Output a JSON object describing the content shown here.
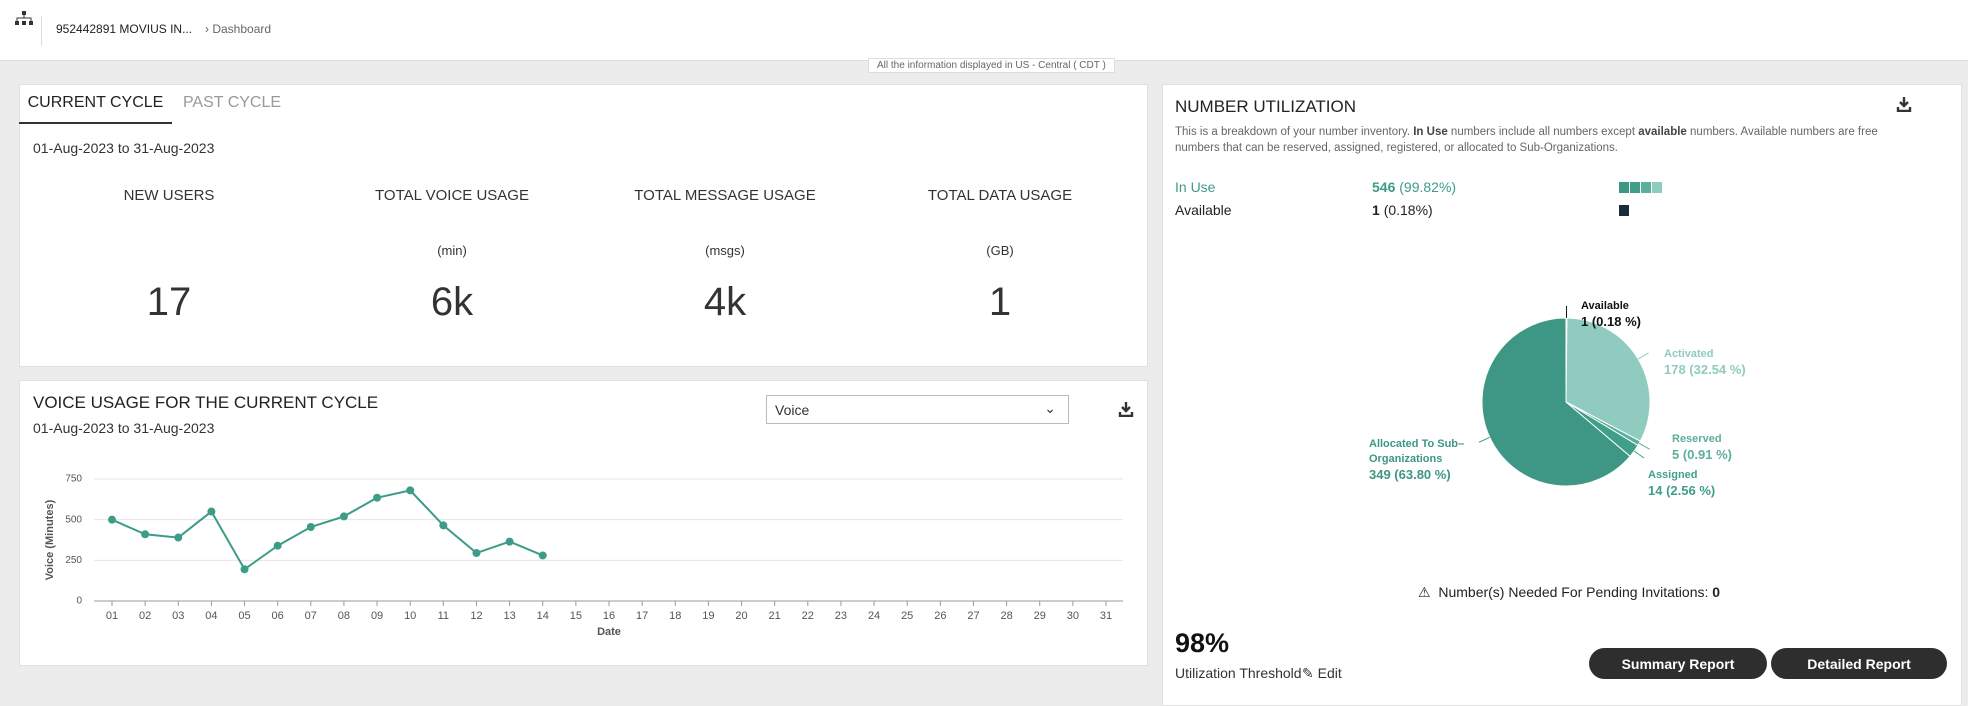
{
  "header": {
    "account": "952442891 MOVIUS IN...",
    "breadcrumb": "Dashboard",
    "timezone": "All the information displayed in US - Central ( CDT )"
  },
  "cycle_panel": {
    "tabs": [
      "CURRENT CYCLE",
      "PAST CYCLE"
    ],
    "date_range": "01-Aug-2023 to 31-Aug-2023",
    "stats": [
      {
        "label": "NEW USERS",
        "unit": null,
        "value": "17"
      },
      {
        "label": "TOTAL VOICE USAGE",
        "unit": "(min)",
        "value": "6k"
      },
      {
        "label": "TOTAL MESSAGE USAGE",
        "unit": "(msgs)",
        "value": "4k"
      },
      {
        "label": "TOTAL DATA USAGE",
        "unit": "(GB)",
        "value": "1"
      }
    ]
  },
  "voice_panel": {
    "title": "VOICE USAGE FOR THE CURRENT CYCLE",
    "date_range": "01-Aug-2023 to 31-Aug-2023",
    "dropdown": "Voice",
    "chart": {
      "type": "line",
      "x_label": "Date",
      "y_label": "Voice (Minutes)",
      "color": "#3d9c87",
      "grid": true,
      "categories": [
        "01",
        "02",
        "03",
        "04",
        "05",
        "06",
        "07",
        "08",
        "09",
        "10",
        "11",
        "12",
        "13",
        "14",
        "15",
        "16",
        "17",
        "18",
        "19",
        "20",
        "21",
        "22",
        "23",
        "24",
        "25",
        "26",
        "27",
        "28",
        "29",
        "30",
        "31"
      ],
      "values": [
        500,
        410,
        390,
        550,
        195,
        340,
        455,
        520,
        635,
        680,
        465,
        295,
        365,
        280,
        null,
        null,
        null,
        null,
        null,
        null,
        null,
        null,
        null,
        null,
        null,
        null,
        null,
        null,
        null,
        null,
        null
      ],
      "ylim": [
        0,
        750
      ],
      "yticks": [
        0,
        250,
        500,
        750
      ]
    }
  },
  "utilization": {
    "title": "NUMBER UTILIZATION",
    "description_parts": [
      "This is a breakdown of your number inventory. ",
      "In Use",
      " numbers include all numbers except ",
      "available",
      " numbers. Available numbers are free numbers that can be reserved, assigned, registered, or allocated to Sub-Organizations."
    ],
    "rows": [
      {
        "label": "In Use",
        "count": "546",
        "percent": "(99.82%)"
      },
      {
        "label": "Available",
        "count": "1",
        "percent": "(0.18%)"
      }
    ],
    "chart": {
      "type": "pie",
      "series": [
        {
          "name": "Available",
          "color": "#1c2b3a",
          "value": 1,
          "value_label": "1 (0.18 %)"
        },
        {
          "name": "Activated",
          "color": "#90cbbf",
          "value": 178,
          "value_label": "178 (32.54 %)"
        },
        {
          "name": "Reserved",
          "color": "#5cae9d",
          "value": 5,
          "value_label": "5 (0.91 %)"
        },
        {
          "name": "Assigned",
          "color": "#3f9f89",
          "value": 14,
          "value_label": "14 (2.56 %)"
        },
        {
          "name": "Allocated To Sub–Organizations",
          "color": "#3e9684",
          "value": 349,
          "value_label": "349 (63.80 %)"
        }
      ]
    },
    "pending_label": "Number(s) Needed For Pending Invitations:",
    "pending_value": 0,
    "threshold": "98%",
    "threshold_label": "Utilization Threshold",
    "edit": "Edit",
    "buttons": [
      "Summary Report",
      "Detailed Report"
    ]
  }
}
